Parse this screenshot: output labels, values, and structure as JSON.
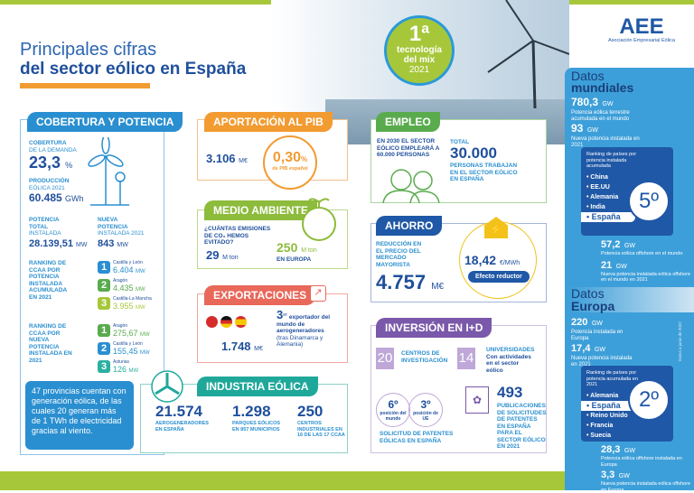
{
  "header": {
    "title_line1": "Principales cifras",
    "title_line2": "del sector eólico en España",
    "badge": {
      "number": "1ª",
      "line1": "tecnología",
      "line2": "del mix",
      "year": "2021"
    },
    "logo": {
      "text": "AEE",
      "subtitle": "Asociación Empresarial Eólica"
    }
  },
  "cobertura": {
    "title": "COBERTURA Y POTENCIA",
    "cob_label1": "COBERTURA",
    "cob_label2": "DE LA DEMANDA",
    "cob_value": "23,3",
    "cob_unit": "%",
    "prod_label1": "PRODUCCIÓN",
    "prod_label2": "EÓLICA 2021",
    "prod_value": "60.485",
    "prod_unit": "GWh",
    "total_label1": "POTENCIA",
    "total_label2": "TOTAL",
    "total_label3": "INSTALADA",
    "total_value": "28.139,51",
    "total_unit": "MW",
    "new_label1": "NUEVA",
    "new_label2": "POTENCIA",
    "new_label3": "INSTALADA 2021",
    "new_value": "843",
    "new_unit": "MW",
    "rank1_label": "RANKING DE CCAA POR POTENCIA INSTALADA ACUMULADA EN 2021",
    "rank1": [
      {
        "pos": "1",
        "region": "Castilla y León",
        "value": "6.404",
        "unit": "MW",
        "color": "#2a8fd0"
      },
      {
        "pos": "2",
        "region": "Aragón",
        "value": "4.435",
        "unit": "MW",
        "color": "#5aab4e"
      },
      {
        "pos": "3",
        "region": "Castilla-La Mancha",
        "value": "3.955",
        "unit": "MW",
        "color": "#a7c73a"
      }
    ],
    "rank2_label": "RANKING DE CCAA POR NUEVA POTENCIA INSTALADA EN 2021",
    "rank2": [
      {
        "pos": "1",
        "region": "Aragón",
        "value": "275,67",
        "unit": "MW",
        "color": "#5aab4e"
      },
      {
        "pos": "2",
        "region": "Castilla y León",
        "value": "155,45",
        "unit": "MW",
        "color": "#2a8fd0"
      },
      {
        "pos": "3",
        "region": "Asturias",
        "value": "126",
        "unit": "MW",
        "color": "#2ab0a0"
      }
    ]
  },
  "note": "47 provincias cuentan con generación eólica, de las cuales 20 generan más de 1 TWh de electricidad gracias al viento.",
  "pib": {
    "title": "APORTACIÓN AL PIB",
    "value": "3.106",
    "unit": "M€",
    "pct": "0,30",
    "pct_unit": "%",
    "pct_label": "de PIB español"
  },
  "medio": {
    "title": "MEDIO AMBIENTE",
    "question": "¿CUÁNTAS EMISIONES DE CO₂ HEMOS EVITADO?",
    "value": "29",
    "unit": "M ton",
    "eu_value": "250",
    "eu_unit": "M ton",
    "eu_label": "EN EUROPA"
  },
  "export": {
    "title": "EXPORTACIONES",
    "rank": "3",
    "rank_sup": "er",
    "text1": "exportador del mundo de aerogeneradores",
    "text2": "(tras Dinamarca y Alemania)",
    "value": "1.748",
    "unit": "M€"
  },
  "industria": {
    "title": "INDUSTRIA EÓLICA",
    "items": [
      {
        "value": "21.574",
        "label": "AEROGENERADORES EN ESPAÑA"
      },
      {
        "value": "1.298",
        "label": "PARQUES EÓLICOS EN 857 MUNICIPIOS"
      },
      {
        "value": "250",
        "label": "CENTROS INDUSTRIALES EN 16 DE LAS 17 CCAA"
      }
    ]
  },
  "empleo": {
    "title": "EMPLEO",
    "forecast": "EN 2030 EL SECTOR EÓLICO EMPLEARÁ A 60.000 PERSONAS",
    "total_label": "TOTAL",
    "total_value": "30.000",
    "total_desc": "PERSONAS TRABAJAN EN EL SECTOR EÓLICO EN ESPAÑA"
  },
  "ahorro": {
    "title": "AHORRO",
    "label": "REDUCCIÓN EN EL PRECIO DEL MERCADO MAYORISTA",
    "value": "4.757",
    "unit": "M€",
    "price": "18,42",
    "price_unit": "€/MWh",
    "tag": "Efecto reductor"
  },
  "id": {
    "title": "INVERSIÓN EN I+D",
    "centros_value": "20",
    "centros_label": "CENTROS DE INVESTIGACIÓN",
    "univ_value": "14",
    "univ_label": "UNIVERSIDADES",
    "univ_desc": "Con actividades en el sector eólico",
    "world_pos": "6º",
    "world_label": "posición del mundo",
    "ue_pos": "3º",
    "ue_label": "posición de UE",
    "patents_label": "SOLICITUD DE PATENTES EÓLICAS EN ESPAÑA",
    "pub_value": "493",
    "pub_label": "PUBLICACIONES DE SOLICITUDES DE PATENTES EN ESPAÑA PARA EL SECTOR EÓLICO EN 2021"
  },
  "mundial": {
    "h1": "Datos",
    "h2": "mundiales",
    "v1": "780,3",
    "u1": "GW",
    "d1": "Potencia eólica terrestre acumulada en el mundo",
    "v2": "93",
    "u2": "GW",
    "d2": "Nueva potencia instalada en 2021",
    "rank_title": "Ranking de países por potencia instalada acumulada",
    "countries": [
      "China",
      "EE.UU",
      "Alemania",
      "India",
      "España"
    ],
    "position": "5º",
    "v3": "57,2",
    "u3": "GW",
    "d3": "Potencia eólica offshore en el mundo",
    "v4": "21",
    "u4": "GW",
    "d4": "Nueva potencia instalada eólica offshore en el mundo en 2021"
  },
  "europa": {
    "h1": "Datos",
    "h2": "Europa",
    "v1": "220",
    "u1": "GW",
    "d1": "Potencia instalada en Europa",
    "v2": "17,4",
    "u2": "GW",
    "d2": "Nueva potencia instalada en 2021",
    "rank_title": "Ranking de países por potencia acumulada en 2021",
    "countries": [
      "Alemania",
      "España",
      "Reino Unido",
      "Francia",
      "Suecia"
    ],
    "position": "2º",
    "v3": "28,3",
    "u3": "GW",
    "d3": "Potencia eólica offshore instalada en Europa",
    "v4": "3,3",
    "u4": "GW",
    "d4": "Nueva potencia instalada eólica offshore en Europa"
  },
  "source_note": "Datos a junio de 2022"
}
